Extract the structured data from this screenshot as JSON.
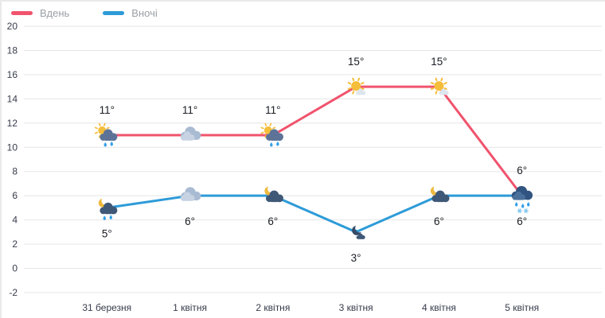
{
  "chart_data": {
    "type": "line",
    "title": "",
    "xlabel": "",
    "ylabel": "",
    "categories": [
      "31 березня",
      "1 квітня",
      "2 квітня",
      "3 квітня",
      "4 квітня",
      "5 квітня"
    ],
    "ylim": [
      -2,
      20
    ],
    "ytick_step": 2,
    "grid": true,
    "legend_position": "top-left",
    "grid_color": "#e5e5e5",
    "axis_label_color": "#363b4a",
    "temp_label_color": "#1a1d24",
    "series": [
      {
        "name": "Вдень",
        "color": "#f0536d",
        "values": [
          11,
          11,
          11,
          15,
          15,
          6
        ],
        "labels": [
          "11°",
          "11°",
          "11°",
          "15°",
          "15°",
          "6°"
        ],
        "label_position": "above",
        "icons": [
          "sun-cloud-rain-icon",
          "cloud-icon",
          "sun-cloud-rain-icon",
          "sun-icon",
          "sun-icon",
          "cloud-sleet-icon"
        ]
      },
      {
        "name": "Вночі",
        "color": "#2d9bd8",
        "values": [
          5,
          6,
          6,
          3,
          6,
          6
        ],
        "labels": [
          "5°",
          "6°",
          "6°",
          "3°",
          "6°",
          "6°"
        ],
        "label_position": "below",
        "icons": [
          "moon-cloud-rain-icon",
          "cloud-icon",
          "moon-cloud-icon",
          "moon-icon",
          "moon-cloud-icon",
          null
        ]
      }
    ]
  }
}
